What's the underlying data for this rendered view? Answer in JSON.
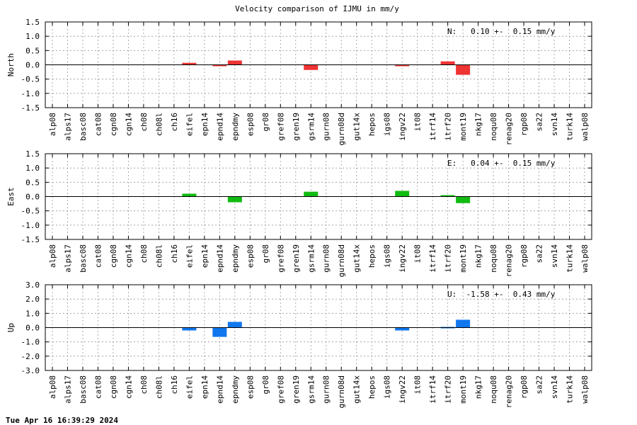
{
  "title": "Velocity comparison of IJMU in mm/y",
  "timestamp": "Tue Apr 16 16:39:29 2024",
  "chart_data": {
    "type": "bar",
    "categories": [
      "alp08",
      "alps17",
      "basc08",
      "cat08",
      "cgn08",
      "cgn14",
      "ch08",
      "ch08l",
      "ch16",
      "eifel",
      "epn14",
      "epnd14",
      "epndmy",
      "esp08",
      "gr08",
      "gref08",
      "gren19",
      "gsrm14",
      "gurn08",
      "gurn08d",
      "gut14x",
      "hepos",
      "igs08",
      "ingv22",
      "it08",
      "itrf14",
      "itrf20",
      "mont19",
      "nkg17",
      "noqu08",
      "renag20",
      "rgp08",
      "sa22",
      "svn14",
      "turk14",
      "walp08"
    ],
    "panels": [
      {
        "ylabel": "North",
        "ylim": [
          -1.5,
          1.5
        ],
        "yticks": [
          "1.5",
          "1.0",
          "0.5",
          "0.0",
          "-0.5",
          "-1.0",
          "-1.5"
        ],
        "color": "#ee3333",
        "annotation": "N:   0.10 +-  0.15 mm/y",
        "values": [
          null,
          null,
          null,
          null,
          null,
          null,
          null,
          null,
          null,
          0.07,
          null,
          -0.03,
          0.15,
          null,
          null,
          null,
          null,
          -0.18,
          null,
          null,
          null,
          null,
          null,
          -0.04,
          null,
          null,
          0.12,
          -0.35,
          null,
          null,
          null,
          null,
          null,
          null,
          null,
          null
        ]
      },
      {
        "ylabel": "East",
        "ylim": [
          -1.5,
          1.5
        ],
        "yticks": [
          "1.5",
          "1.0",
          "0.5",
          "0.0",
          "-0.5",
          "-1.0",
          "-1.5"
        ],
        "color": "#11bb11",
        "annotation": "E:   0.04 +-  0.15 mm/y",
        "values": [
          null,
          null,
          null,
          null,
          null,
          null,
          null,
          null,
          null,
          0.1,
          null,
          null,
          -0.2,
          null,
          null,
          null,
          null,
          0.17,
          null,
          null,
          null,
          null,
          null,
          0.2,
          null,
          null,
          0.05,
          -0.23,
          null,
          null,
          null,
          null,
          null,
          null,
          null,
          null
        ]
      },
      {
        "ylabel": "Up",
        "ylim": [
          -3.0,
          3.0
        ],
        "yticks": [
          "3.0",
          "2.0",
          "1.0",
          "0.0",
          "-1.0",
          "-2.0",
          "-3.0"
        ],
        "color": "#1177ee",
        "annotation": "U:  -1.58 +-  0.43 mm/y",
        "values": [
          null,
          null,
          null,
          null,
          null,
          null,
          null,
          null,
          null,
          -0.2,
          null,
          -0.65,
          0.4,
          null,
          null,
          null,
          null,
          null,
          null,
          null,
          null,
          null,
          null,
          -0.2,
          null,
          null,
          0.05,
          0.55,
          null,
          null,
          null,
          null,
          null,
          null,
          null,
          null
        ]
      }
    ]
  }
}
